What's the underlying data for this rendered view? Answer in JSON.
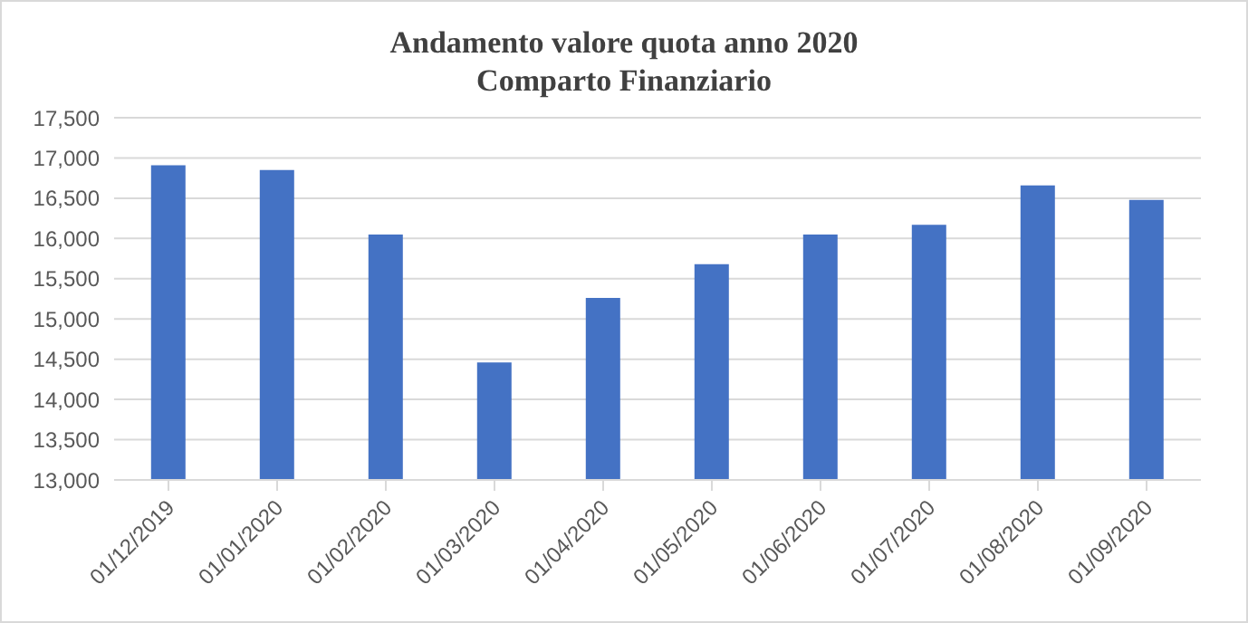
{
  "chart_data": {
    "type": "bar",
    "title": "Andamento valore quota anno 2020\nComparto Finanziario",
    "categories": [
      "01/12/2019",
      "01/01/2020",
      "01/02/2020",
      "01/03/2020",
      "01/04/2020",
      "01/05/2020",
      "01/06/2020",
      "01/07/2020",
      "01/08/2020",
      "01/09/2020"
    ],
    "values": [
      16910,
      16850,
      16050,
      14460,
      15260,
      15680,
      16050,
      16170,
      16660,
      16480
    ],
    "color": "#4472c4",
    "ylim": [
      13000,
      17500
    ],
    "yticks": [
      {
        "value": 13000,
        "label": "13,000"
      },
      {
        "value": 13500,
        "label": "13,500"
      },
      {
        "value": 14000,
        "label": "14,000"
      },
      {
        "value": 14500,
        "label": "14,500"
      },
      {
        "value": 15000,
        "label": "15,000"
      },
      {
        "value": 15500,
        "label": "15,500"
      },
      {
        "value": 16000,
        "label": "16,000"
      },
      {
        "value": 16500,
        "label": "16,500"
      },
      {
        "value": 17000,
        "label": "17,000"
      },
      {
        "value": 17500,
        "label": "17,500"
      }
    ],
    "grid": "y"
  }
}
